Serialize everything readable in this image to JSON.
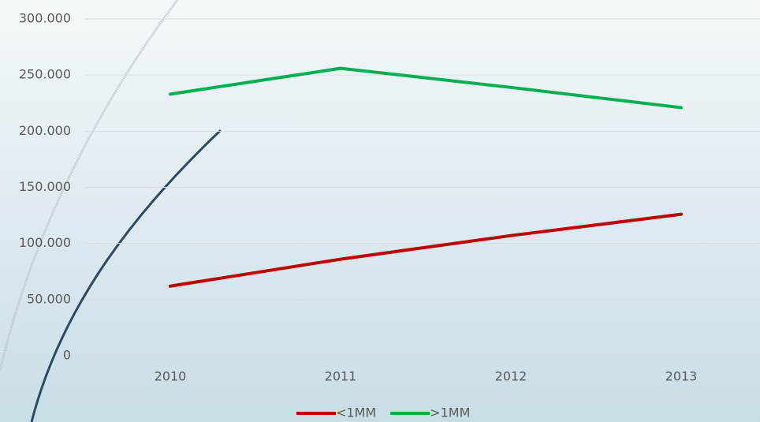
{
  "chart_data": {
    "type": "line",
    "categories": [
      "2010",
      "2011",
      "2012",
      "2013"
    ],
    "series": [
      {
        "name": "<1MM",
        "color": "#c00000",
        "values": [
          62000,
          86000,
          107000,
          126000
        ]
      },
      {
        "name": ">1MM",
        "color": "#00b050",
        "values": [
          233000,
          256000,
          239000,
          221000
        ]
      }
    ],
    "ylim": [
      0,
      300000
    ],
    "yticks": [
      0,
      {
        "value": 50000,
        "label": "50.000"
      },
      {
        "value": 100000,
        "label": "100.000"
      },
      {
        "value": 150000,
        "label": "150.000"
      },
      {
        "value": 200000,
        "label": "200.000"
      },
      {
        "value": 250000,
        "label": "250.000"
      },
      {
        "value": 300000,
        "label": "300.000"
      }
    ],
    "grid": true,
    "legend": "bottom"
  }
}
